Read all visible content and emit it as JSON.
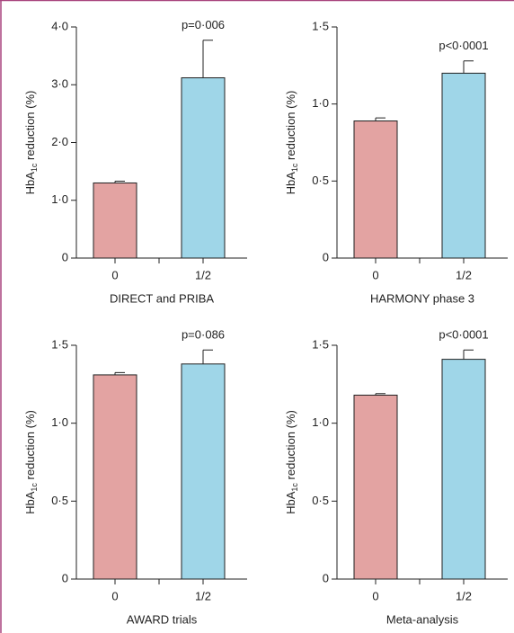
{
  "chart_data": [
    {
      "type": "bar",
      "categories": [
        "0",
        "1/2"
      ],
      "values": [
        1.3,
        3.12
      ],
      "errors": [
        0.03,
        0.65
      ],
      "colors": [
        "#e3a3a2",
        "#9fd6e8"
      ],
      "ylim": [
        0,
        4
      ],
      "yticks": [
        0,
        {
          "value": 1,
          "label": "1·0"
        },
        {
          "value": 2,
          "label": "2·0"
        },
        {
          "value": 3,
          "label": "3·0"
        },
        {
          "value": 4,
          "label": "4·0"
        }
      ],
      "y_label": [
        "HbA",
        "1c",
        " reduction (%)"
      ],
      "x_label": "DIRECT and PRIBA",
      "annotation": "p=0·006"
    },
    {
      "type": "bar",
      "categories": [
        "0",
        "1/2"
      ],
      "values": [
        0.89,
        1.2
      ],
      "errors": [
        0.02,
        0.08
      ],
      "colors": [
        "#e3a3a2",
        "#9fd6e8"
      ],
      "ylim": [
        0,
        1.5
      ],
      "yticks": [
        0,
        {
          "value": 0.5,
          "label": "0·5"
        },
        {
          "value": 1,
          "label": "1·0"
        },
        {
          "value": 1.5,
          "label": "1·5"
        }
      ],
      "y_label": [
        "HbA",
        "1c",
        " reduction (%)"
      ],
      "x_label": "HARMONY phase 3",
      "annotation": "p<0·0001"
    },
    {
      "type": "bar",
      "categories": [
        "0",
        "1/2"
      ],
      "values": [
        1.31,
        1.38
      ],
      "errors": [
        0.015,
        0.09
      ],
      "colors": [
        "#e3a3a2",
        "#9fd6e8"
      ],
      "ylim": [
        0,
        1.5
      ],
      "yticks": [
        0,
        {
          "value": 0.5,
          "label": "0·5"
        },
        {
          "value": 1,
          "label": "1·0"
        },
        {
          "value": 1.5,
          "label": "1·5"
        }
      ],
      "y_label": [
        "HbA",
        "1c",
        " reduction (%)"
      ],
      "x_label": "AWARD trials",
      "annotation": "p=0·086"
    },
    {
      "type": "bar",
      "categories": [
        "0",
        "1/2"
      ],
      "values": [
        1.18,
        1.41
      ],
      "errors": [
        0.01,
        0.06
      ],
      "colors": [
        "#e3a3a2",
        "#9fd6e8"
      ],
      "ylim": [
        0,
        1.5
      ],
      "yticks": [
        0,
        {
          "value": 0.5,
          "label": "0·5"
        },
        {
          "value": 1,
          "label": "1·0"
        },
        {
          "value": 1.5,
          "label": "1·5"
        }
      ],
      "y_label": [
        "HbA",
        "1c",
        " reduction (%)"
      ],
      "x_label": "Meta-analysis",
      "annotation": "p<0·0001"
    }
  ]
}
